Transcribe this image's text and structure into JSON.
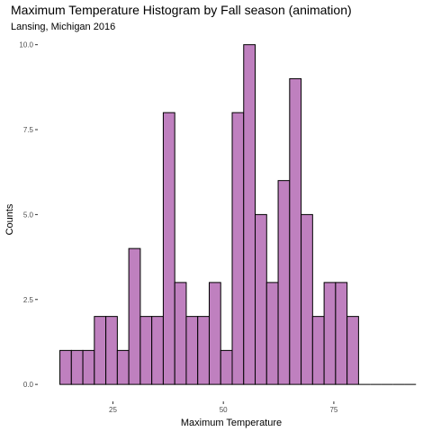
{
  "chart_data": {
    "type": "bar",
    "title": "Maximum Temperature Histogram by Fall season (animation)",
    "subtitle": "Lansing, Michigan 2016",
    "xlabel": "Maximum Temperature",
    "ylabel": "Counts",
    "bin_width": 2.6,
    "bins": [
      {
        "x0": 13.0,
        "count": 1
      },
      {
        "x0": 15.6,
        "count": 1
      },
      {
        "x0": 18.2,
        "count": 1
      },
      {
        "x0": 20.8,
        "count": 2
      },
      {
        "x0": 23.4,
        "count": 2
      },
      {
        "x0": 26.0,
        "count": 1
      },
      {
        "x0": 28.6,
        "count": 4
      },
      {
        "x0": 31.2,
        "count": 2
      },
      {
        "x0": 33.8,
        "count": 2
      },
      {
        "x0": 36.4,
        "count": 8
      },
      {
        "x0": 39.0,
        "count": 3
      },
      {
        "x0": 41.6,
        "count": 2
      },
      {
        "x0": 44.2,
        "count": 2
      },
      {
        "x0": 46.8,
        "count": 3
      },
      {
        "x0": 49.4,
        "count": 1
      },
      {
        "x0": 52.0,
        "count": 8
      },
      {
        "x0": 54.6,
        "count": 10
      },
      {
        "x0": 57.2,
        "count": 5
      },
      {
        "x0": 59.8,
        "count": 3
      },
      {
        "x0": 62.4,
        "count": 6
      },
      {
        "x0": 65.0,
        "count": 9
      },
      {
        "x0": 67.6,
        "count": 5
      },
      {
        "x0": 70.2,
        "count": 2
      },
      {
        "x0": 72.8,
        "count": 3
      },
      {
        "x0": 75.4,
        "count": 3
      },
      {
        "x0": 78.0,
        "count": 2
      },
      {
        "x0": 80.6,
        "count": 0
      },
      {
        "x0": 83.2,
        "count": 0
      },
      {
        "x0": 85.8,
        "count": 0
      },
      {
        "x0": 88.4,
        "count": 0
      },
      {
        "x0": 91.0,
        "count": 0
      }
    ],
    "xlim": [
      8,
      96
    ],
    "ylim": [
      -0.5,
      10.15
    ],
    "x_ticks": [
      25,
      50,
      75
    ],
    "x_tick_labels": [
      "25",
      "50",
      "75"
    ],
    "y_ticks": [
      0,
      2.5,
      5,
      7.5,
      10
    ],
    "y_tick_labels": [
      "0.0",
      "2.5",
      "5.0",
      "7.5",
      "10.0"
    ],
    "grid": false,
    "legend": "none",
    "colors": {
      "bar_fill": "#bf80bf",
      "bar_stroke": "#000000",
      "axis_text": "#4d4d4d",
      "tick": "#333333"
    }
  }
}
